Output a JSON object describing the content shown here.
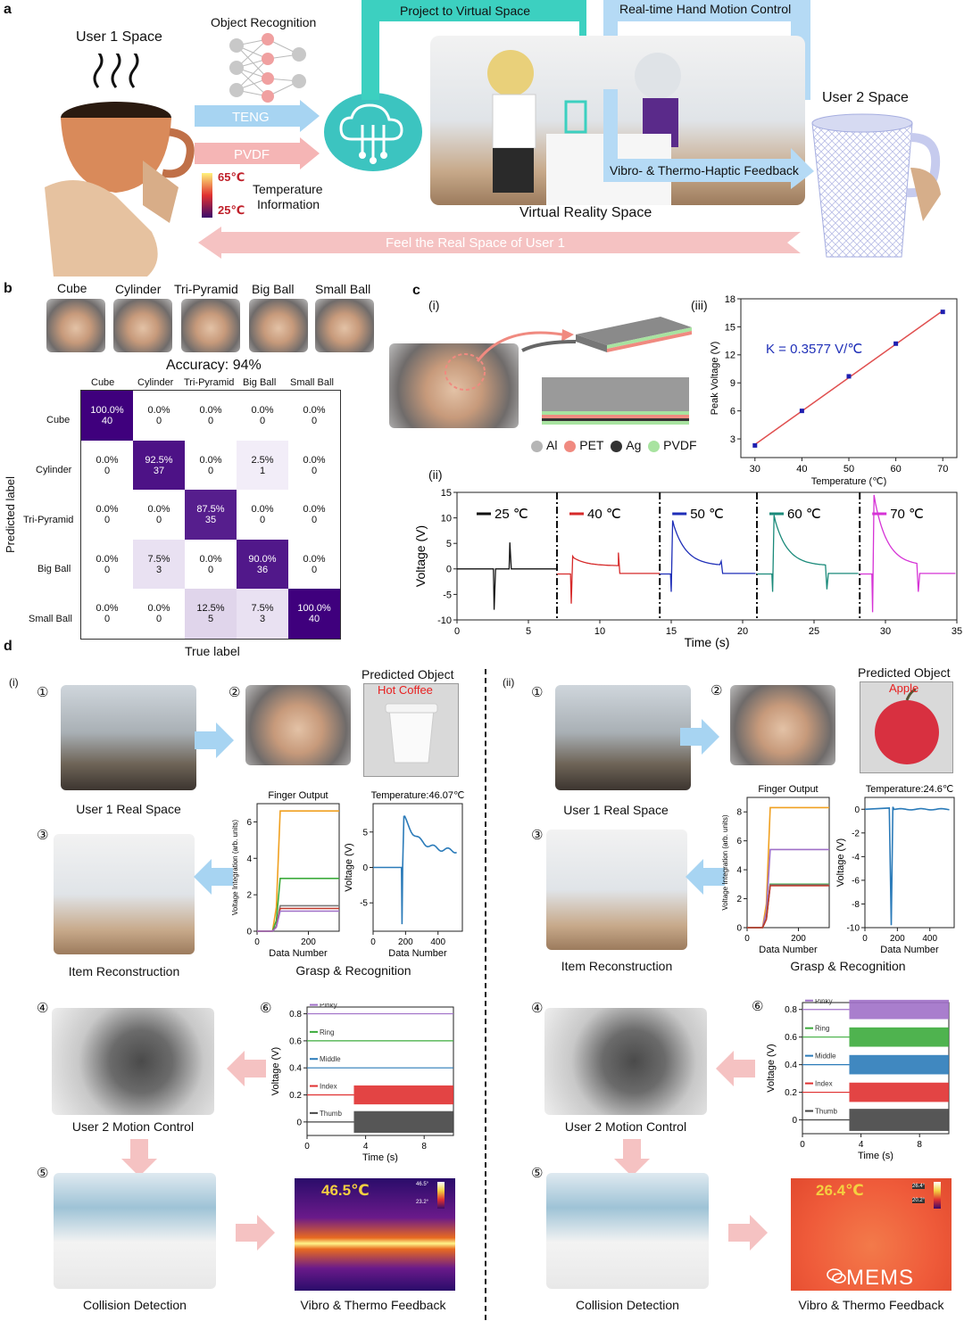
{
  "panel_a": {
    "letter": "a",
    "user1_space": "User 1 Space",
    "object_recognition": "Object Recognition",
    "teng": "TENG",
    "pvdf": "PVDF",
    "temp_high": "65℃",
    "temp_low": "25℃",
    "temperature_info_1": "Temperature",
    "temperature_info_2": "Information",
    "project_virtual": "Project to Virtual Space",
    "hand_motion": "Real-time Hand Motion Control",
    "user2_space": "User 2 Space",
    "haptic_feedback": "Vibro- & Thermo-Haptic Feedback",
    "vr_space": "Virtual Reality Space",
    "feel_real": "Feel  the  Real  Space of User 1"
  },
  "panel_b": {
    "letter": "b",
    "objects": [
      "Cube",
      "Cylinder",
      "Tri-Pyramid",
      "Big Ball",
      "Small Ball"
    ],
    "accuracy": "Accuracy: 94%",
    "ylabel": "Predicted label",
    "xlabel": "True label",
    "matrix": [
      [
        [
          "100.0%",
          "40"
        ],
        [
          "0.0%",
          "0"
        ],
        [
          "0.0%",
          "0"
        ],
        [
          "0.0%",
          "0"
        ],
        [
          "0.0%",
          "0"
        ]
      ],
      [
        [
          "0.0%",
          "0"
        ],
        [
          "92.5%",
          "37"
        ],
        [
          "0.0%",
          "0"
        ],
        [
          "2.5%",
          "1"
        ],
        [
          "0.0%",
          "0"
        ]
      ],
      [
        [
          "0.0%",
          "0"
        ],
        [
          "0.0%",
          "0"
        ],
        [
          "87.5%",
          "35"
        ],
        [
          "0.0%",
          "0"
        ],
        [
          "0.0%",
          "0"
        ]
      ],
      [
        [
          "0.0%",
          "0"
        ],
        [
          "7.5%",
          "3"
        ],
        [
          "0.0%",
          "0"
        ],
        [
          "90.0%",
          "36"
        ],
        [
          "0.0%",
          "0"
        ]
      ],
      [
        [
          "0.0%",
          "0"
        ],
        [
          "0.0%",
          "0"
        ],
        [
          "12.5%",
          "5"
        ],
        [
          "7.5%",
          "3"
        ],
        [
          "100.0%",
          "40"
        ]
      ]
    ],
    "matrix_values": [
      [
        100,
        0,
        0,
        0,
        0
      ],
      [
        0,
        92.5,
        0,
        2.5,
        0
      ],
      [
        0,
        0,
        87.5,
        0,
        0
      ],
      [
        0,
        7.5,
        0,
        90,
        0
      ],
      [
        0,
        0,
        12.5,
        7.5,
        100
      ]
    ]
  },
  "panel_c": {
    "letter": "c",
    "sub_i": "(i)",
    "sub_ii": "(ii)",
    "sub_iii": "(iii)",
    "legend": [
      {
        "name": "Al",
        "color": "#b5b5b5"
      },
      {
        "name": "PET",
        "color": "#f08a80"
      },
      {
        "name": "Ag",
        "color": "#333333"
      },
      {
        "name": "PVDF",
        "color": "#a8e3a0"
      }
    ]
  },
  "panel_d": {
    "letter": "d",
    "left": {
      "sub": "(i)",
      "predicted_object": "Predicted Object",
      "object_name": "Hot Coffee",
      "user1_real": "User 1 Real Space",
      "item_recon": "Item Reconstruction",
      "grasp_recog": "Grasp & Recognition",
      "user2_motion": "User 2 Motion Control",
      "collision": "Collision Detection",
      "vibro_thermo": "Vibro & Thermo Feedback",
      "thermal_temp": "46.5℃",
      "thermal_scale_hi": "46.5°",
      "thermal_scale_lo": "23.2°"
    },
    "right": {
      "sub": "(ii)",
      "predicted_object": "Predicted Object",
      "object_name": "Apple",
      "user1_real": "User 1 Real Space",
      "item_recon": "Item Reconstruction",
      "grasp_recog": "Grasp & Recognition",
      "user2_motion": "User 2 Motion Control",
      "collision": "Collision Detection",
      "vibro_thermo": "Vibro & Thermo Feedback",
      "thermal_temp": "26.4℃",
      "thermal_scale_hi": "26.4°",
      "thermal_scale_lo": "20.2°",
      "watermark": "MEMS"
    },
    "steps": [
      "①",
      "②",
      "③",
      "④",
      "⑤",
      "⑥"
    ]
  },
  "chart_data": [
    {
      "id": "c-iii",
      "type": "scatter",
      "xlabel": "Temperature (℃)",
      "ylabel": "Peak Voltage (V)",
      "annotation": "K = 0.3577 V/℃",
      "x": [
        30,
        40,
        50,
        60,
        70
      ],
      "y": [
        2.3,
        6.0,
        9.7,
        13.2,
        16.6
      ],
      "xlim": [
        27,
        73
      ],
      "ylim": [
        1,
        18
      ],
      "xticks": [
        30,
        40,
        50,
        60,
        70
      ],
      "yticks": [
        3,
        6,
        9,
        12,
        15,
        18
      ],
      "point_color": "#1f1fb0",
      "fit_color": "#e05050"
    },
    {
      "id": "c-ii",
      "type": "line",
      "xlabel": "Time (s)",
      "ylabel": "Voltage (V)",
      "xlim": [
        0,
        35
      ],
      "ylim": [
        -10,
        15
      ],
      "xticks": [
        0,
        5,
        10,
        15,
        20,
        25,
        30,
        35
      ],
      "yticks": [
        -10,
        -5,
        0,
        5,
        10,
        15
      ],
      "dividers": [
        7.0,
        14.2,
        21.0,
        28.2
      ],
      "series": [
        {
          "name": "25 ℃",
          "color": "#111111",
          "t0": 0,
          "t1": 7.0,
          "peak_neg_t": 2.6,
          "peak_neg": -8.0,
          "peak_pos_t": 3.7,
          "peak_pos": 5.2,
          "decay": 0
        },
        {
          "name": "40 ℃",
          "color": "#d62a2a",
          "t0": 7.0,
          "t1": 14.2,
          "peak_neg_t": 8.0,
          "peak_neg": -6.8,
          "peak_pos_t": 8.1,
          "peak_pos": 2.5,
          "end_spike_t": 11.3,
          "end_spike": 3.2
        },
        {
          "name": "50 ℃",
          "color": "#1f2fb8",
          "t0": 14.2,
          "t1": 21.0,
          "peak_neg_t": 15.0,
          "peak_neg": -4.5,
          "peak_pos_t": 15.1,
          "peak_pos": 9.5,
          "end_spike_t": 18.5,
          "end_spike": 1.5
        },
        {
          "name": "60 ℃",
          "color": "#1a8a7a",
          "t0": 21.0,
          "t1": 28.2,
          "peak_neg_t": 22.1,
          "peak_neg": -4.5,
          "peak_pos_t": 22.2,
          "peak_pos": 10.5,
          "end_spike_t": 25.9,
          "end_spike": -4.0
        },
        {
          "name": "70 ℃",
          "color": "#d633d6",
          "t0": 28.2,
          "t1": 35,
          "peak_neg_t": 29.1,
          "peak_neg": -8.5,
          "peak_pos_t": 29.2,
          "peak_pos": 14.5,
          "end_spike_t": 32.3,
          "end_spike": -4.5
        }
      ]
    },
    {
      "id": "d-i-finger",
      "type": "line",
      "title": "Finger Output",
      "xlabel": "Data Number",
      "ylabel": "Voltage Integration (arb. units)",
      "xlim": [
        0,
        320
      ],
      "ylim": [
        0,
        7
      ],
      "xticks": [
        0,
        200
      ],
      "yticks": [
        0,
        2,
        4,
        6
      ],
      "series": [
        {
          "color": "#f0a020",
          "final": 6.6
        },
        {
          "color": "#3cab3c",
          "final": 2.9
        },
        {
          "color": "#7a7a7a",
          "final": 1.4
        },
        {
          "color": "#c0392b",
          "final": 1.25
        },
        {
          "color": "#a070c8",
          "final": 1.1
        }
      ]
    },
    {
      "id": "d-i-temp",
      "type": "line",
      "title": "Temperature:46.07℃",
      "xlabel": "Data Number",
      "ylabel": "Voltage (V)",
      "xlim": [
        0,
        550
      ],
      "ylim": [
        -9,
        9
      ],
      "xticks": [
        0,
        200,
        400
      ],
      "yticks": [
        -5,
        0,
        5
      ],
      "color": "#2b7bb9"
    },
    {
      "id": "d-ii-finger",
      "type": "line",
      "title": "Finger Output",
      "xlabel": "Data Number",
      "ylabel": "Voltage Integration (arb. units)",
      "xlim": [
        0,
        320
      ],
      "ylim": [
        0,
        9
      ],
      "xticks": [
        0,
        200
      ],
      "yticks": [
        0,
        2,
        4,
        6,
        8
      ],
      "series": [
        {
          "color": "#f0a020",
          "final": 8.3
        },
        {
          "color": "#a070c8",
          "final": 5.4
        },
        {
          "color": "#3cab3c",
          "final": 3.0
        },
        {
          "color": "#7a7a7a",
          "final": 2.95
        },
        {
          "color": "#c0392b",
          "final": 2.9
        }
      ]
    },
    {
      "id": "d-ii-temp",
      "type": "line",
      "title": "Temperature:24.6℃",
      "xlabel": "Data Number",
      "ylabel": "Voltage (V)",
      "xlim": [
        0,
        550
      ],
      "ylim": [
        -10,
        1
      ],
      "xticks": [
        0,
        200,
        400
      ],
      "yticks": [
        -10,
        -8,
        -6,
        -4,
        -2,
        0
      ],
      "color": "#2b7bb9"
    },
    {
      "id": "d-i-motion",
      "type": "line",
      "xlabel": "Time (s)",
      "ylabel": "Voltage (V)",
      "xlim": [
        0,
        10
      ],
      "ylim": [
        -0.1,
        0.85
      ],
      "xticks": [
        0,
        4,
        8
      ],
      "yticks": [
        0.0,
        0.2,
        0.4,
        0.6,
        0.8
      ],
      "series": [
        {
          "name": "Pinky",
          "color": "#a070c8",
          "base": 0.8,
          "amp": 0
        },
        {
          "name": "Ring",
          "color": "#3cab3c",
          "base": 0.6,
          "amp": 0
        },
        {
          "name": "Middle",
          "color": "#2b7bb9",
          "base": 0.4,
          "amp": 0
        },
        {
          "name": "Index",
          "color": "#e03030",
          "base": 0.2,
          "amp": 0.14
        },
        {
          "name": "Thumb",
          "color": "#444444",
          "base": 0.0,
          "amp": 0.16
        }
      ]
    },
    {
      "id": "d-ii-motion",
      "type": "line",
      "xlabel": "Time (s)",
      "ylabel": "Voltage (V)",
      "xlim": [
        0,
        10
      ],
      "ylim": [
        -0.1,
        0.85
      ],
      "xticks": [
        0,
        4,
        8
      ],
      "yticks": [
        0.0,
        0.2,
        0.4,
        0.6,
        0.8
      ],
      "series": [
        {
          "name": "Pinky",
          "color": "#a070c8",
          "base": 0.8,
          "amp": 0.14
        },
        {
          "name": "Ring",
          "color": "#3cab3c",
          "base": 0.6,
          "amp": 0.14
        },
        {
          "name": "Middle",
          "color": "#2b7bb9",
          "base": 0.4,
          "amp": 0.14
        },
        {
          "name": "Index",
          "color": "#e03030",
          "base": 0.2,
          "amp": 0.14
        },
        {
          "name": "Thumb",
          "color": "#444444",
          "base": 0.0,
          "amp": 0.16
        }
      ]
    }
  ]
}
